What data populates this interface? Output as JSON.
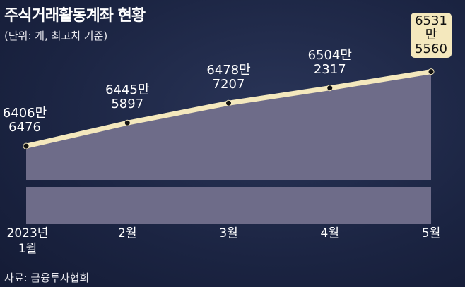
{
  "chart_data": {
    "type": "area",
    "title": "주식거래활동계좌 현황",
    "subtitle": "(단위: 개, 최고치 기준)",
    "source": "자료: 금융투자협회",
    "categories": [
      "2023년\n1월",
      "2월",
      "3월",
      "4월",
      "5월"
    ],
    "series": [
      {
        "values": [
          64066476,
          64455897,
          64787207,
          65042317,
          65315560
        ],
        "value_labels": [
          "6406만\n6476",
          "6445만\n5897",
          "6478만\n7207",
          "6504만\n2317",
          "6531만\n5560"
        ],
        "color": "#f4e8bd",
        "area_color": "#6e6c89"
      }
    ],
    "ylim": [
      63500000,
      66400000
    ]
  }
}
